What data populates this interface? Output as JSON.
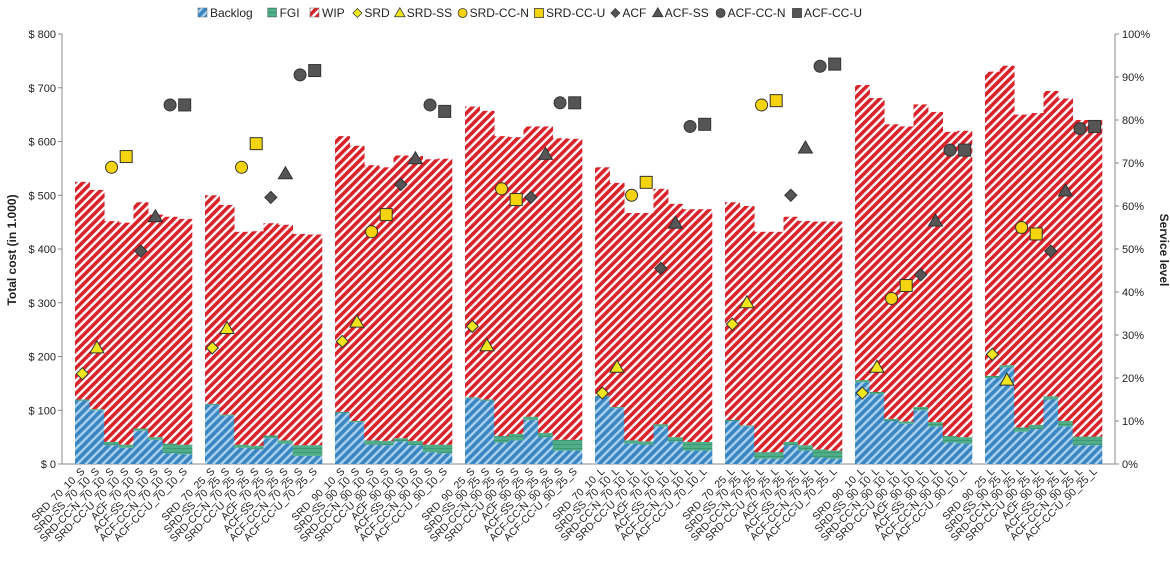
{
  "chart_data": {
    "type": "bar",
    "stacked": true,
    "ylabel": "Total cost (in 1.000)",
    "y2label": "Service level",
    "ylim": [
      0,
      800
    ],
    "y2lim": [
      0,
      100
    ],
    "yticks": [
      "$ 0",
      "$ 100",
      "$ 200",
      "$ 300",
      "$ 400",
      "$ 500",
      "$ 600",
      "$ 700",
      "$ 800"
    ],
    "y2ticks": [
      "0%",
      "10%",
      "20%",
      "30%",
      "40%",
      "50%",
      "60%",
      "70%",
      "80%",
      "90%",
      "100%"
    ],
    "grid": false,
    "legend_position": "top",
    "groups": [
      {
        "categories": [
          "SRD_70_10_S",
          "SRD-SS_70_10_S",
          "SRD-CC-N_70_10_S",
          "SRD-CC-U_70_10_S",
          "ACF_70_10_S",
          "ACF-SS_70_10_S",
          "ACF-CC-N_70_10_S",
          "ACF-CC-U_70_10_S"
        ]
      },
      {
        "categories": [
          "SRD_70_25_S",
          "SRD-SS_70_25_S",
          "SRD-CC-N_70_25_S",
          "SRD-CC-U_70_25_S",
          "ACF_70_25_S",
          "ACF-SS_70_25_S",
          "ACF-CC-N_70_25_S",
          "ACF-CC-U_70_25_S"
        ]
      },
      {
        "categories": [
          "SRD_90_10_S",
          "SRD-SS_90_10_S",
          "SRD-CC-N_90_10_S",
          "SRD-CC-U_90_10_S",
          "ACF_90_10_S",
          "ACF-SS_90_10_S",
          "ACF-CC-N_90_10_S",
          "ACF-CC-U_90_10_S"
        ]
      },
      {
        "categories": [
          "SRD_90_25_S",
          "SRD-SS_90_25_S",
          "SRD-CC-N_90_25_S",
          "SRD-CC-U_90_25_S",
          "ACF_90_25_S",
          "ACF-SS_90_25_S",
          "ACF-CC-N_90_25_S",
          "ACF-CC-U_90_25_S"
        ]
      },
      {
        "categories": [
          "SRD_70_10_L",
          "SRD-SS_70_10_L",
          "SRD-CC-N_70_10_L",
          "SRD-CC-U_70_10_L",
          "ACF_70_10_L",
          "ACF-SS_70_10_L",
          "ACF-CC-N_70_10_L",
          "ACF-CC-U_70_10_L"
        ]
      },
      {
        "categories": [
          "SRD_70_25_L",
          "SRD-SS_70_25_L",
          "SRD-CC-N_70_25_L",
          "SRD-CC-U_70_25_L",
          "ACF_70_25_L",
          "ACF-SS_70_25_L",
          "ACF-CC-N_70_25_L",
          "ACF-CC-U_70_25_L"
        ]
      },
      {
        "categories": [
          "SRD_90_10_L",
          "SRD-SS_90_10_L",
          "SRD-CC-N_90_10_L",
          "SRD-CC-U_90_10_L",
          "ACF_90_10_L",
          "ACF-SS_90_10_L",
          "ACF-CC-N_90_10_L",
          "ACF-CC-U_90_10_L"
        ]
      },
      {
        "categories": [
          "SRD_90_25_L",
          "SRD-SS_90_25_L",
          "SRD-CC-N_90_25_L",
          "SRD-CC-U_90_25_L",
          "ACF_90_25_L",
          "ACF-SS_90_25_L",
          "ACF-CC-N_90_25_L",
          "ACF-CC-U_90_25_L"
        ]
      }
    ],
    "bar_series": [
      {
        "name": "Backlog",
        "color": "#4a90c8",
        "pattern": "diag",
        "values": [
          [
            118,
            100,
            35,
            30,
            62,
            45,
            20,
            18
          ],
          [
            110,
            90,
            30,
            28,
            48,
            38,
            15,
            15
          ],
          [
            95,
            78,
            36,
            35,
            42,
            35,
            22,
            20
          ],
          [
            122,
            118,
            40,
            44,
            82,
            50,
            25,
            25
          ],
          [
            125,
            104,
            38,
            36,
            70,
            42,
            25,
            25
          ],
          [
            80,
            70,
            10,
            10,
            35,
            25,
            12,
            10
          ],
          [
            152,
            130,
            80,
            75,
            100,
            70,
            40,
            38
          ],
          [
            160,
            180,
            60,
            65,
            120,
            70,
            35,
            35
          ]
        ]
      },
      {
        "name": "FGI",
        "color": "#4fae88",
        "pattern": "solid",
        "values": [
          [
            2,
            2,
            6,
            6,
            4,
            5,
            18,
            18
          ],
          [
            2,
            2,
            6,
            6,
            5,
            6,
            20,
            20
          ],
          [
            2,
            2,
            8,
            8,
            6,
            8,
            14,
            16
          ],
          [
            2,
            2,
            12,
            12,
            6,
            8,
            20,
            20
          ],
          [
            2,
            2,
            6,
            6,
            4,
            8,
            16,
            16
          ],
          [
            2,
            2,
            12,
            12,
            6,
            10,
            15,
            15
          ],
          [
            4,
            4,
            4,
            4,
            6,
            8,
            12,
            12
          ],
          [
            4,
            4,
            8,
            8,
            6,
            10,
            16,
            16
          ]
        ]
      },
      {
        "name": "WIP",
        "color": "#d8232a",
        "pattern": "diag",
        "values": [
          [
            405,
            408,
            411,
            413,
            421,
            414,
            422,
            420
          ],
          [
            388,
            390,
            396,
            399,
            395,
            401,
            393,
            392
          ],
          [
            513,
            512,
            512,
            509,
            526,
            530,
            531,
            532
          ],
          [
            541,
            537,
            558,
            552,
            540,
            570,
            561,
            560
          ],
          [
            425,
            417,
            423,
            425,
            438,
            434,
            433,
            433
          ],
          [
            405,
            408,
            410,
            410,
            419,
            417,
            424,
            426
          ],
          [
            549,
            547,
            548,
            549,
            563,
            577,
            566,
            570
          ],
          [
            566,
            557,
            582,
            580,
            568,
            600,
            589,
            589
          ]
        ]
      }
    ],
    "point_series": [
      {
        "name": "SRD",
        "marker": "diamond",
        "color": "#f0e61e",
        "values": [
          21,
          null,
          null,
          null,
          null,
          null,
          null,
          null,
          27,
          null,
          null,
          null,
          null,
          null,
          null,
          null,
          28.5,
          null,
          null,
          null,
          null,
          null,
          null,
          null,
          32,
          null,
          null,
          null,
          null,
          null,
          null,
          null,
          16.5,
          null,
          null,
          null,
          null,
          null,
          null,
          null,
          32.5,
          null,
          null,
          null,
          null,
          null,
          null,
          null,
          16.5,
          null,
          null,
          null,
          null,
          null,
          null,
          null,
          25.5,
          null,
          null,
          null,
          null,
          null,
          null,
          null
        ]
      },
      {
        "name": "SRD-SS",
        "marker": "triangle",
        "color": "#f0e61e",
        "values": [
          null,
          27,
          null,
          null,
          null,
          null,
          null,
          null,
          null,
          31.5,
          null,
          null,
          null,
          null,
          null,
          null,
          null,
          33,
          null,
          null,
          null,
          null,
          null,
          null,
          null,
          27.5,
          null,
          null,
          null,
          null,
          null,
          null,
          null,
          22.5,
          null,
          null,
          null,
          null,
          null,
          null,
          null,
          37.5,
          null,
          null,
          null,
          null,
          null,
          null,
          null,
          22.5,
          null,
          null,
          null,
          null,
          null,
          null,
          null,
          19.5,
          null,
          null,
          null,
          null,
          null,
          null
        ]
      },
      {
        "name": "SRD-CC-N",
        "marker": "circle",
        "color": "#f5d40f",
        "values": [
          null,
          null,
          69,
          null,
          null,
          null,
          null,
          null,
          null,
          null,
          69,
          null,
          null,
          null,
          null,
          null,
          null,
          null,
          54,
          null,
          null,
          null,
          null,
          null,
          null,
          null,
          64,
          null,
          null,
          null,
          null,
          null,
          null,
          null,
          62.5,
          null,
          null,
          null,
          null,
          null,
          null,
          null,
          83.5,
          null,
          null,
          null,
          null,
          null,
          null,
          null,
          38.5,
          null,
          null,
          null,
          null,
          null,
          null,
          null,
          55,
          null,
          null,
          null,
          null,
          null
        ]
      },
      {
        "name": "SRD-CC-U",
        "marker": "square",
        "color": "#f5d40f",
        "values": [
          null,
          null,
          null,
          71.5,
          null,
          null,
          null,
          null,
          null,
          null,
          null,
          74.5,
          null,
          null,
          null,
          null,
          null,
          null,
          null,
          58,
          null,
          null,
          null,
          null,
          null,
          null,
          null,
          61.5,
          null,
          null,
          null,
          null,
          null,
          null,
          null,
          65.5,
          null,
          null,
          null,
          null,
          null,
          null,
          null,
          84.5,
          null,
          null,
          null,
          null,
          null,
          null,
          null,
          41.5,
          null,
          null,
          null,
          null,
          null,
          null,
          null,
          53.5,
          null,
          null,
          null,
          null
        ]
      },
      {
        "name": "ACF",
        "marker": "diamond",
        "color": "#555555",
        "values": [
          null,
          null,
          null,
          null,
          49.5,
          null,
          null,
          null,
          null,
          null,
          null,
          null,
          62,
          null,
          null,
          null,
          null,
          null,
          null,
          null,
          65,
          null,
          null,
          null,
          null,
          null,
          null,
          null,
          62,
          null,
          null,
          null,
          null,
          null,
          null,
          null,
          45.5,
          null,
          null,
          null,
          null,
          null,
          null,
          null,
          62.5,
          null,
          null,
          null,
          null,
          null,
          null,
          null,
          44,
          null,
          null,
          null,
          null,
          null,
          null,
          null,
          49.5,
          null,
          null,
          null
        ]
      },
      {
        "name": "ACF-SS",
        "marker": "triangle",
        "color": "#555555",
        "values": [
          null,
          null,
          null,
          null,
          null,
          57.5,
          null,
          null,
          null,
          null,
          null,
          null,
          null,
          67.5,
          null,
          null,
          null,
          null,
          null,
          null,
          null,
          71,
          null,
          null,
          null,
          null,
          null,
          null,
          null,
          72,
          null,
          null,
          null,
          null,
          null,
          null,
          null,
          56,
          null,
          null,
          null,
          null,
          null,
          null,
          null,
          73.5,
          null,
          null,
          null,
          null,
          null,
          null,
          null,
          56.5,
          null,
          null,
          null,
          null,
          null,
          null,
          null,
          63.5,
          null,
          null
        ]
      },
      {
        "name": "ACF-CC-N",
        "marker": "circle",
        "color": "#555555",
        "values": [
          null,
          null,
          null,
          null,
          null,
          null,
          83.5,
          null,
          null,
          null,
          null,
          null,
          null,
          null,
          90.5,
          null,
          null,
          null,
          null,
          null,
          null,
          null,
          83.5,
          null,
          null,
          null,
          null,
          null,
          null,
          null,
          84,
          null,
          null,
          null,
          null,
          null,
          null,
          null,
          78.5,
          null,
          null,
          null,
          null,
          null,
          null,
          null,
          92.5,
          null,
          null,
          null,
          null,
          null,
          null,
          null,
          73,
          null,
          null,
          null,
          null,
          null,
          null,
          null,
          78,
          null
        ]
      },
      {
        "name": "ACF-CC-U",
        "marker": "square",
        "color": "#555555",
        "values": [
          null,
          null,
          null,
          null,
          null,
          null,
          null,
          83.5,
          null,
          null,
          null,
          null,
          null,
          null,
          null,
          91.5,
          null,
          null,
          null,
          null,
          null,
          null,
          null,
          82,
          null,
          null,
          null,
          null,
          null,
          null,
          null,
          84,
          null,
          null,
          null,
          null,
          null,
          null,
          null,
          79,
          null,
          null,
          null,
          null,
          null,
          null,
          null,
          93,
          null,
          null,
          null,
          null,
          null,
          null,
          null,
          73,
          null,
          null,
          null,
          null,
          null,
          null,
          null,
          78.5
        ]
      }
    ],
    "legend": [
      "Backlog",
      "FGI",
      "WIP",
      "SRD",
      "SRD-SS",
      "SRD-CC-N",
      "SRD-CC-U",
      "ACF",
      "ACF-SS",
      "ACF-CC-N",
      "ACF-CC-U"
    ]
  }
}
